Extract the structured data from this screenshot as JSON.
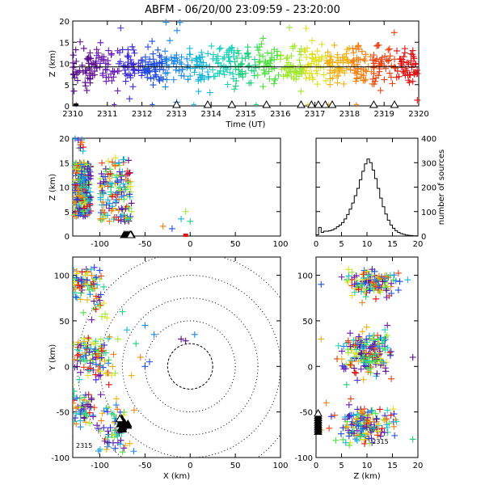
{
  "title": "ABFM - 06/20/00 23:09:59 - 23:20:00",
  "chart_data": [
    {
      "id": "time_height",
      "type": "scatter",
      "xlabel": "Time (UT)",
      "ylabel": "Z (km)",
      "xlim": [
        2310,
        2320
      ],
      "ylim": [
        0,
        20
      ],
      "x_ticks": [
        2310,
        2311,
        2312,
        2313,
        2314,
        2315,
        2316,
        2317,
        2318,
        2319,
        2320
      ],
      "x_tick_labels": [
        "2310",
        "2311",
        "2312",
        "2313",
        "2314",
        "2315",
        "2316",
        "2317",
        "2318",
        "2319",
        "2320"
      ],
      "y_ticks": [
        0,
        5,
        10,
        15,
        20
      ],
      "y_tick_labels": [
        "0",
        "5",
        "10",
        "15",
        "20"
      ],
      "reference_line_z": 9.2,
      "color_scale": "time, purple→blue→cyan→green→yellow→orange→red",
      "marker": "+",
      "series": [
        {
          "x": [
            2310.1,
            2310.3,
            2310.5,
            2310.7,
            2310.9,
            2311.1,
            2311.3,
            2311.5,
            2311.7,
            2311.9
          ],
          "y": [
            10.5,
            8.0,
            12.5,
            9.0,
            11.0,
            7.5,
            13.0,
            9.5,
            10.0,
            8.5
          ]
        },
        {
          "x": [
            2312.1,
            2312.4,
            2312.7,
            2313.0,
            2313.3,
            2313.6,
            2313.9
          ],
          "y": [
            11.5,
            8.5,
            10.5,
            12.0,
            9.0,
            10.5,
            8.0
          ]
        },
        {
          "x": [
            2314.2,
            2314.5,
            2314.8,
            2315.1,
            2315.4,
            2315.7
          ],
          "y": [
            10.0,
            11.5,
            8.5,
            9.5,
            12.0,
            10.5
          ]
        },
        {
          "x": [
            2316.0,
            2316.3,
            2316.6,
            2316.9,
            2317.2,
            2317.5,
            2317.8
          ],
          "y": [
            11.0,
            9.0,
            13.5,
            10.0,
            14.5,
            9.5,
            11.5
          ]
        },
        {
          "x": [
            2318.1,
            2318.4,
            2318.7,
            2319.0,
            2319.3,
            2319.6,
            2319.9
          ],
          "y": [
            10.5,
            8.5,
            12.0,
            9.5,
            11.0,
            13.5,
            10.0
          ]
        }
      ],
      "station_markers_x": [
        2313.0,
        2313.9,
        2314.6,
        2315.6,
        2316.6,
        2316.9,
        2317.1,
        2317.3,
        2317.5,
        2318.7,
        2319.3
      ]
    },
    {
      "id": "x_height",
      "type": "scatter",
      "xlabel": "",
      "ylabel": "Z (km)",
      "xlim": [
        -130,
        100
      ],
      "ylim": [
        0,
        20
      ],
      "x_ticks": [
        -100,
        -50,
        0,
        50,
        100
      ],
      "x_tick_labels": [
        "-100",
        "-50",
        "0",
        "50",
        "100"
      ],
      "y_ticks": [
        0,
        5,
        10,
        15,
        20
      ],
      "y_tick_labels": [
        "0",
        "5",
        "10",
        "15",
        "20"
      ],
      "cluster_1": {
        "x_range": [
          -128,
          -110
        ],
        "z_range": [
          4,
          15
        ]
      },
      "cluster_2": {
        "x_range": [
          -100,
          -65
        ],
        "z_range": [
          3,
          16
        ]
      },
      "outliers": {
        "x": [
          -20,
          -10,
          0,
          -5,
          -30
        ],
        "y": [
          1.5,
          3.5,
          3,
          5,
          2
        ]
      },
      "station_markers_x": [
        -73,
        -71,
        -69,
        -67,
        -65
      ]
    },
    {
      "id": "height_histogram",
      "type": "bar",
      "xlabel": "",
      "ylabel": "number of sources",
      "xlim": [
        0,
        20
      ],
      "ylim": [
        0,
        400
      ],
      "x_ticks": [
        0,
        5,
        10,
        15,
        20
      ],
      "x_tick_labels": [
        "0",
        "5",
        "10",
        "15",
        "20"
      ],
      "y_ticks": [
        0,
        100,
        200,
        300,
        400
      ],
      "y_tick_labels": [
        "0",
        "100",
        "200",
        "300",
        "400"
      ],
      "bins": [
        0,
        0.5,
        1,
        1.5,
        2,
        2.5,
        3,
        3.5,
        4,
        4.5,
        5,
        5.5,
        6,
        6.5,
        7,
        7.5,
        8,
        8.5,
        9,
        9.5,
        10,
        10.5,
        11,
        11.5,
        12,
        12.5,
        13,
        13.5,
        14,
        14.5,
        15,
        15.5,
        16,
        16.5,
        17,
        17.5,
        18,
        18.5,
        19,
        19.5
      ],
      "values": [
        5,
        35,
        15,
        20,
        20,
        22,
        25,
        30,
        38,
        45,
        55,
        70,
        88,
        110,
        135,
        165,
        195,
        230,
        265,
        295,
        315,
        300,
        270,
        235,
        195,
        155,
        120,
        90,
        65,
        45,
        32,
        22,
        15,
        10,
        7,
        4,
        3,
        2,
        1,
        1
      ]
    },
    {
      "id": "plan_view",
      "type": "scatter",
      "xlabel": "X (km)",
      "ylabel": "Y (km)",
      "xlim": [
        -130,
        100
      ],
      "ylim": [
        -100,
        120
      ],
      "x_ticks": [
        -100,
        -50,
        0,
        50,
        100
      ],
      "x_tick_labels": [
        "-100",
        "-50",
        "0",
        "50",
        "100"
      ],
      "y_ticks": [
        -100,
        -50,
        0,
        50,
        100
      ],
      "y_tick_labels": [
        "-100",
        "-50",
        "0",
        "50",
        "100"
      ],
      "range_rings_km": [
        25,
        50,
        75,
        100,
        125
      ],
      "label": "2315"
    },
    {
      "id": "z_y_view",
      "type": "scatter",
      "xlabel": "Z (km)",
      "ylabel": "",
      "xlim": [
        0,
        20
      ],
      "ylim": [
        -100,
        120
      ],
      "x_ticks": [
        0,
        5,
        10,
        15,
        20
      ],
      "x_tick_labels": [
        "0",
        "5",
        "10",
        "15",
        "20"
      ],
      "y_ticks": [
        -100,
        -50,
        0,
        50,
        100
      ],
      "y_tick_labels": [
        "-100",
        "-50",
        "0",
        "50",
        "100"
      ],
      "label": "2315"
    }
  ]
}
